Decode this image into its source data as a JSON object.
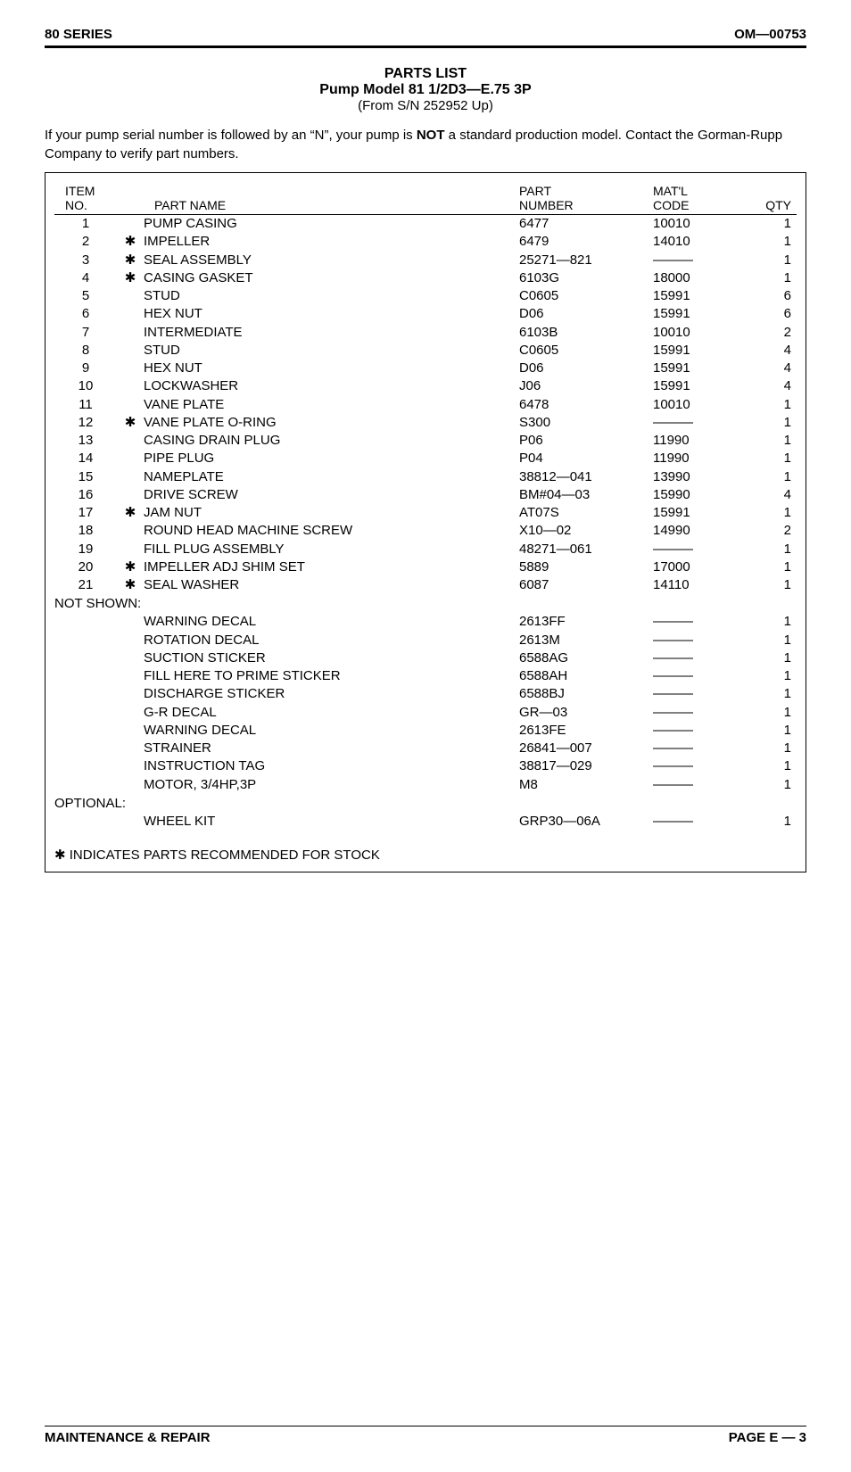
{
  "header": {
    "left": "80 SERIES",
    "right": "OM—00753"
  },
  "title": {
    "line1": "PARTS LIST",
    "line2": "Pump Model 81 1/2D3—E.75 3P",
    "line3": "(From S/N 252952 Up)"
  },
  "intro": {
    "pre": "If your pump serial number is followed by an “N”, your pump is ",
    "bold": "NOT",
    "post": " a standard production model. Contact the Gorman-Rupp Company to verify part numbers."
  },
  "columns": {
    "item1": "ITEM",
    "item2": "NO.",
    "name": "PART NAME",
    "part1": "PART",
    "part2": "NUMBER",
    "matl1": "MAT'L",
    "matl2": "CODE",
    "qty": "QTY"
  },
  "rows": [
    {
      "no": "1",
      "star": "",
      "name": "PUMP CASING",
      "part": "6477",
      "matl": "10010",
      "qty": "1"
    },
    {
      "no": "2",
      "star": "✱",
      "name": "IMPELLER",
      "part": "6479",
      "matl": "14010",
      "qty": "1"
    },
    {
      "no": "3",
      "star": "✱",
      "name": "SEAL ASSEMBLY",
      "part": "25271—821",
      "matl": "———",
      "qty": "1"
    },
    {
      "no": "4",
      "star": "✱",
      "name": "CASING GASKET",
      "part": "6103G",
      "matl": "18000",
      "qty": "1"
    },
    {
      "no": "5",
      "star": "",
      "name": "STUD",
      "part": "C0605",
      "matl": "15991",
      "qty": "6"
    },
    {
      "no": "6",
      "star": "",
      "name": "HEX NUT",
      "part": "D06",
      "matl": "15991",
      "qty": "6"
    },
    {
      "no": "7",
      "star": "",
      "name": "INTERMEDIATE",
      "part": "6103B",
      "matl": "10010",
      "qty": "2"
    },
    {
      "no": "8",
      "star": "",
      "name": "STUD",
      "part": "C0605",
      "matl": "15991",
      "qty": "4"
    },
    {
      "no": "9",
      "star": "",
      "name": "HEX NUT",
      "part": "D06",
      "matl": "15991",
      "qty": "4"
    },
    {
      "no": "10",
      "star": "",
      "name": "LOCKWASHER",
      "part": "J06",
      "matl": "15991",
      "qty": "4"
    },
    {
      "no": "11",
      "star": "",
      "name": "VANE PLATE",
      "part": "6478",
      "matl": "10010",
      "qty": "1"
    },
    {
      "no": "12",
      "star": "✱",
      "name": "VANE PLATE O-RING",
      "part": "S300",
      "matl": "———",
      "qty": "1"
    },
    {
      "no": "13",
      "star": "",
      "name": "CASING DRAIN PLUG",
      "part": "P06",
      "matl": "11990",
      "qty": "1"
    },
    {
      "no": "14",
      "star": "",
      "name": "PIPE PLUG",
      "part": "P04",
      "matl": "11990",
      "qty": "1"
    },
    {
      "no": "15",
      "star": "",
      "name": "NAMEPLATE",
      "part": "38812—041",
      "matl": "13990",
      "qty": "1"
    },
    {
      "no": "16",
      "star": "",
      "name": "DRIVE SCREW",
      "part": "BM#04—03",
      "matl": "15990",
      "qty": "4"
    },
    {
      "no": "17",
      "star": "✱",
      "name": "JAM NUT",
      "part": "AT07S",
      "matl": "15991",
      "qty": "1"
    },
    {
      "no": "18",
      "star": "",
      "name": "ROUND HEAD MACHINE SCREW",
      "part": "X10—02",
      "matl": "14990",
      "qty": "2"
    },
    {
      "no": "19",
      "star": "",
      "name": "FILL PLUG ASSEMBLY",
      "part": "48271—061",
      "matl": "———",
      "qty": "1"
    },
    {
      "no": "20",
      "star": "✱",
      "name": "IMPELLER ADJ SHIM SET",
      "part": "5889",
      "matl": "17000",
      "qty": "1"
    },
    {
      "no": "21",
      "star": "✱",
      "name": "SEAL WASHER",
      "part": "6087",
      "matl": "14110",
      "qty": "1"
    }
  ],
  "notshown_label": "NOT SHOWN:",
  "notshown": [
    {
      "name": "WARNING DECAL",
      "part": "2613FF",
      "matl": "———",
      "qty": "1"
    },
    {
      "name": "ROTATION DECAL",
      "part": "2613M",
      "matl": "———",
      "qty": "1"
    },
    {
      "name": "SUCTION STICKER",
      "part": "6588AG",
      "matl": "———",
      "qty": "1"
    },
    {
      "name": "FILL HERE TO PRIME STICKER",
      "part": "6588AH",
      "matl": "———",
      "qty": "1"
    },
    {
      "name": "DISCHARGE STICKER",
      "part": "6588BJ",
      "matl": "———",
      "qty": "1"
    },
    {
      "name": "G-R DECAL",
      "part": "GR—03",
      "matl": "———",
      "qty": "1"
    },
    {
      "name": "WARNING DECAL",
      "part": "2613FE",
      "matl": "———",
      "qty": "1"
    },
    {
      "name": "STRAINER",
      "part": "26841—007",
      "matl": "———",
      "qty": "1"
    },
    {
      "name": "INSTRUCTION TAG",
      "part": "38817—029",
      "matl": "———",
      "qty": "1"
    },
    {
      "name": "MOTOR, 3/4HP,3P",
      "part": "M8",
      "matl": "———",
      "qty": "1"
    }
  ],
  "optional_label": "OPTIONAL:",
  "optional": [
    {
      "name": "WHEEL KIT",
      "part": "GRP30—06A",
      "matl": "———",
      "qty": "1"
    }
  ],
  "footnote": "✱ INDICATES PARTS RECOMMENDED FOR STOCK",
  "footer": {
    "left": "MAINTENANCE & REPAIR",
    "right": "PAGE E — 3"
  }
}
